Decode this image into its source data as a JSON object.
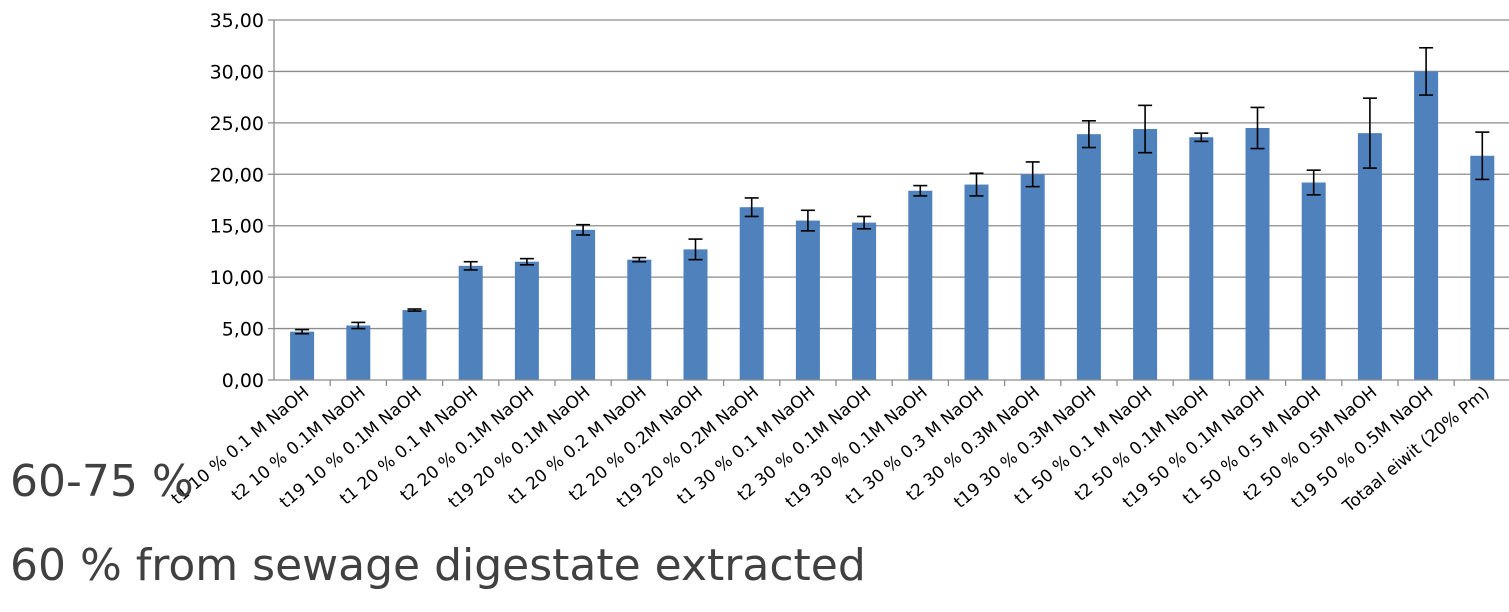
{
  "chart_data": {
    "type": "bar",
    "categories": [
      "t1 10 % 0.1 M NaOH",
      "t2 10 % 0.1M NaOH",
      "t19 10 % 0.1M NaOH",
      "t1 20 % 0.1 M NaOH",
      "t2 20 % 0.1M NaOH",
      "t19 20 % 0.1M NaOH",
      "t1 20 % 0.2 M NaOH",
      "t2 20 % 0.2M NaOH",
      "t19 20 % 0.2M NaOH",
      "t1 30 % 0.1 M NaOH",
      "t2 30 % 0.1M NaOH",
      "t19 30 % 0.1M NaOH",
      "t1 30 % 0.3 M NaOH",
      "t2 30 % 0.3M NaOH",
      "t19 30 % 0.3M NaOH",
      "t1 50 % 0.1 M NaOH",
      "t2 50 % 0.1M NaOH",
      "t19 50 % 0.1M NaOH",
      "t1 50 % 0.5 M NaOH",
      "t2 50 % 0.5M NaOH",
      "t19 50 % 0.5M NaOH",
      "Totaal eiwit (20% Pm)"
    ],
    "values": [
      4.7,
      5.3,
      6.8,
      11.1,
      11.5,
      14.6,
      11.7,
      12.7,
      16.8,
      15.5,
      15.3,
      18.4,
      19.0,
      20.0,
      23.9,
      24.4,
      23.6,
      24.5,
      19.2,
      24.0,
      30.0,
      21.8
    ],
    "error": [
      0.2,
      0.3,
      0.1,
      0.4,
      0.3,
      0.5,
      0.2,
      1.0,
      0.9,
      1.0,
      0.6,
      0.5,
      1.1,
      1.2,
      1.3,
      2.3,
      0.4,
      2.0,
      1.2,
      3.4,
      2.3,
      2.3
    ],
    "ylim": [
      0,
      35
    ],
    "yticks": [
      "0,00",
      "5,00",
      "10,00",
      "15,00",
      "20,00",
      "25,00",
      "30,00",
      "35,00"
    ],
    "grid": true,
    "bar_color": "#4f81bd",
    "error_color": "#000000",
    "grid_color": "#8c8c8c"
  },
  "overlay": {
    "line1": "60-75 %",
    "line2": "60 % from sewage digestate extracted"
  }
}
